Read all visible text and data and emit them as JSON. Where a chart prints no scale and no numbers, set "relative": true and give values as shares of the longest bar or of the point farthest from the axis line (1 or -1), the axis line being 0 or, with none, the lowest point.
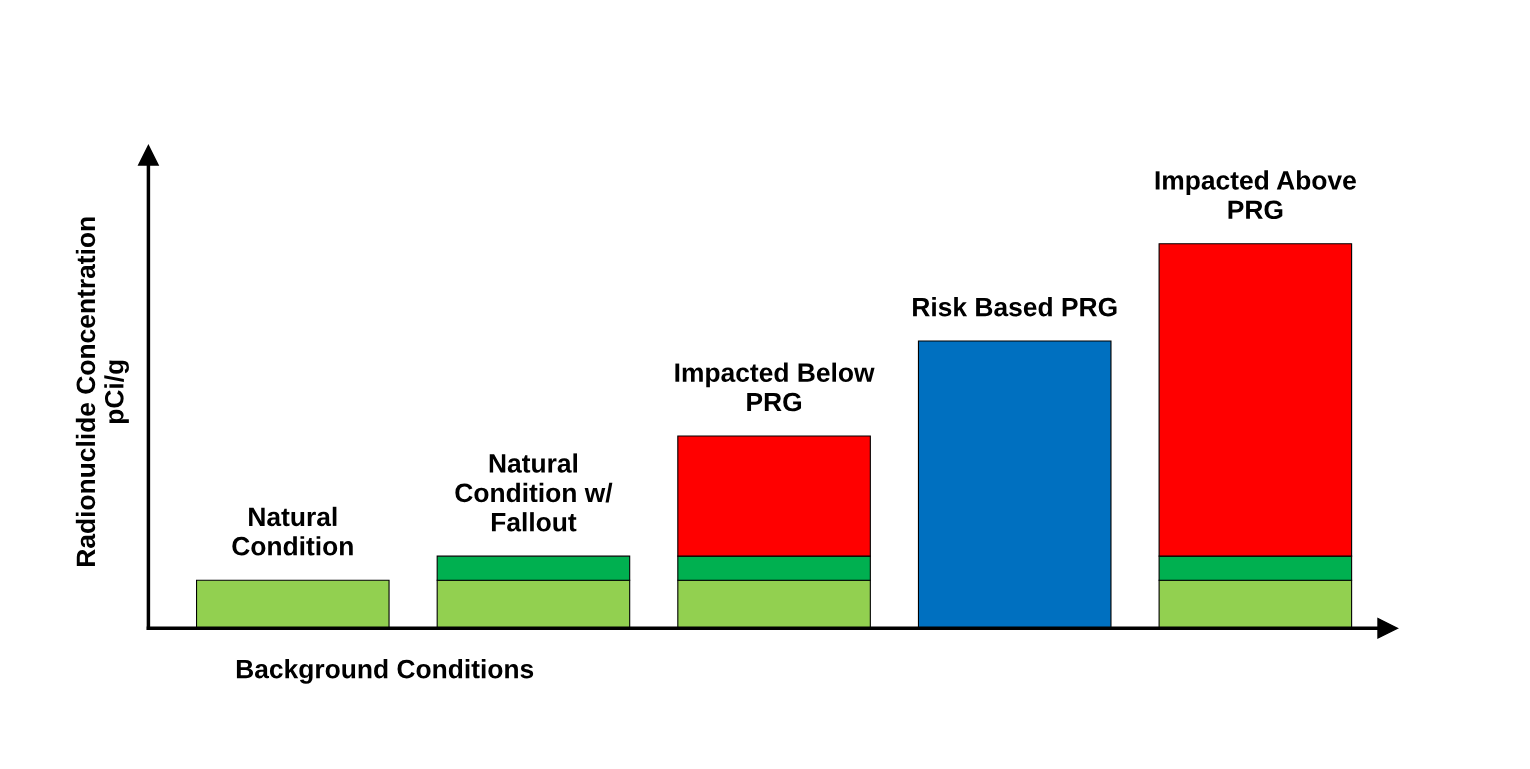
{
  "chart_data": {
    "type": "bar",
    "relative": true,
    "stacked": true,
    "categories": [
      "Natural\nCondition",
      "Natural\nCondition w/\nFallout",
      "Impacted Below\nPRG",
      "Risk Based PRG",
      "Impacted Above\nPRG"
    ],
    "xlabel": "Background Conditions",
    "ylabel": "Radionuclide Concentration\npCi/g",
    "series": [
      {
        "color": "#92d050",
        "values": [
          0.125,
          0.125,
          0.125,
          null,
          0.125
        ]
      },
      {
        "color": "#00b050",
        "values": [
          null,
          0.0625,
          0.0625,
          null,
          0.0625
        ]
      },
      {
        "color": "#ff0000",
        "values": [
          null,
          null,
          0.3125,
          null,
          0.8125
        ]
      },
      {
        "color": "#0070c0",
        "values": [
          null,
          null,
          null,
          0.747,
          null
        ]
      }
    ],
    "legend": false
  }
}
